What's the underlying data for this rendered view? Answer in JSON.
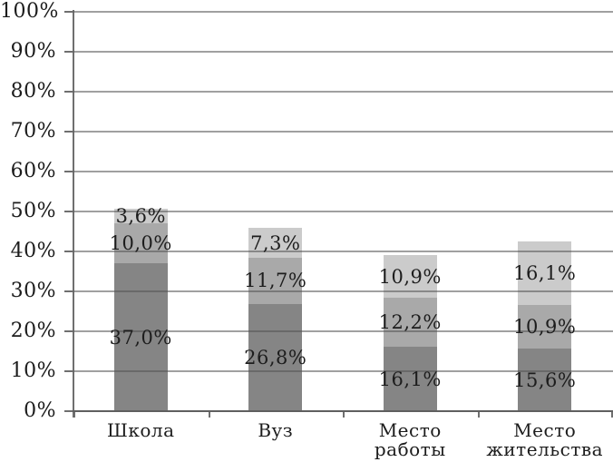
{
  "chart_data": {
    "type": "bar",
    "stacked": true,
    "title": "",
    "xlabel": "",
    "ylabel": "",
    "grid": true,
    "legend": false,
    "categories": [
      "Школа",
      "Вуз",
      "Место работы",
      "Место жительства"
    ],
    "series": [
      {
        "name": "bottom-segment-dark-gray",
        "color": "#858585",
        "values": [
          37.0,
          26.8,
          16.1,
          15.6
        ],
        "labels": [
          "37,0%",
          "26,8%",
          "16,1%",
          "15,6%"
        ]
      },
      {
        "name": "middle-segment-medium-gray",
        "color": "#a9a9a9",
        "values": [
          10.0,
          11.7,
          12.2,
          10.9
        ],
        "labels": [
          "10,0%",
          "11,7%",
          "12,2%",
          "10,9%"
        ]
      },
      {
        "name": "top-segment-light-gray",
        "color": "#cbcbcb",
        "values": [
          3.6,
          7.3,
          10.9,
          16.1
        ],
        "labels": [
          "3,6%",
          "7,3%",
          "10,9%",
          "16,1%"
        ]
      }
    ],
    "y_axis": {
      "min": 0,
      "max": 100,
      "step": 10,
      "tick_labels": [
        "0%",
        "10%",
        "20%",
        "30%",
        "40%",
        "50%",
        "60%",
        "70%",
        "80%",
        "90%",
        "100%"
      ]
    }
  },
  "colors": {
    "background": "#ffffff",
    "grid": "#9a9a9a",
    "axis": "#6f6f6f",
    "text": "#1c1c1c"
  }
}
